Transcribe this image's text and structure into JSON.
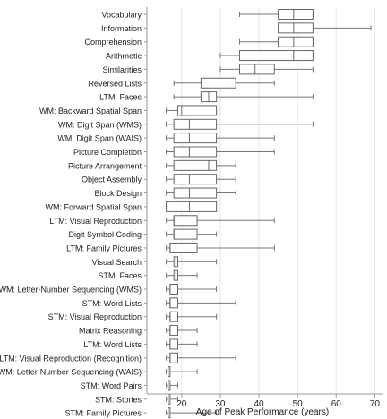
{
  "chart_data": {
    "type": "boxplot",
    "title": "",
    "xlabel": "Age of Peak Performance (years)",
    "ylabel": "",
    "xlim": [
      11,
      72
    ],
    "xticks": [
      20,
      30,
      40,
      50,
      60,
      70
    ],
    "grid": true,
    "legend": "none",
    "colors": {
      "axis": "#999999",
      "box": "#666666",
      "median": "#666666",
      "whisker": "#777777",
      "grid": "#e6e6e6"
    },
    "series": [
      {
        "name": "Vocabulary",
        "whisker_low": 35,
        "q1": 45,
        "median": 49,
        "q3": 54,
        "whisker_high": 54
      },
      {
        "name": "Information",
        "whisker_low": 45,
        "q1": 45,
        "median": 49,
        "q3": 54,
        "whisker_high": 69
      },
      {
        "name": "Comprehension",
        "whisker_low": 35,
        "q1": 45,
        "median": 49,
        "q3": 54,
        "whisker_high": 54
      },
      {
        "name": "Arithmetic",
        "whisker_low": 30,
        "q1": 35,
        "median": 49,
        "q3": 54,
        "whisker_high": 54
      },
      {
        "name": "Similarities",
        "whisker_low": 30,
        "q1": 35,
        "median": 39,
        "q3": 44,
        "whisker_high": 54
      },
      {
        "name": "Reversed Lists",
        "whisker_low": 18,
        "q1": 25,
        "median": 32,
        "q3": 34,
        "whisker_high": 44
      },
      {
        "name": "LTM: Faces",
        "whisker_low": 18,
        "q1": 25,
        "median": 27,
        "q3": 29,
        "whisker_high": 54
      },
      {
        "name": "WM: Backward Spatial Span",
        "whisker_low": 16,
        "q1": 19,
        "median": 20,
        "q3": 29,
        "whisker_high": 29
      },
      {
        "name": "WM: Digit Span (WMS)",
        "whisker_low": 16,
        "q1": 18,
        "median": 22,
        "q3": 29,
        "whisker_high": 54
      },
      {
        "name": "WM: Digit Span (WAIS)",
        "whisker_low": 16,
        "q1": 18,
        "median": 22,
        "q3": 29,
        "whisker_high": 44
      },
      {
        "name": "Picture Completion",
        "whisker_low": 16,
        "q1": 18,
        "median": 22,
        "q3": 29,
        "whisker_high": 44
      },
      {
        "name": "Picture Arrangement",
        "whisker_low": 16,
        "q1": 18,
        "median": 27,
        "q3": 29,
        "whisker_high": 34
      },
      {
        "name": "Object Assembly",
        "whisker_low": 16,
        "q1": 18,
        "median": 22,
        "q3": 29,
        "whisker_high": 34
      },
      {
        "name": "Block Design",
        "whisker_low": 16,
        "q1": 18,
        "median": 22,
        "q3": 29,
        "whisker_high": 34
      },
      {
        "name": "WM: Forward Spatial Span",
        "whisker_low": 16,
        "q1": 16,
        "median": 22,
        "q3": 29,
        "whisker_high": 29
      },
      {
        "name": "LTM: Visual Reproduction",
        "whisker_low": 16,
        "q1": 18,
        "median": 18,
        "q3": 24,
        "whisker_high": 44
      },
      {
        "name": "Digit Symbol Coding",
        "whisker_low": 16,
        "q1": 18,
        "median": 18,
        "q3": 24,
        "whisker_high": 29
      },
      {
        "name": "LTM: Family Pictures",
        "whisker_low": 16,
        "q1": 17,
        "median": 17,
        "q3": 24,
        "whisker_high": 44
      },
      {
        "name": "Visual Search",
        "whisker_low": 16,
        "q1": 18,
        "median": 18.5,
        "q3": 19,
        "whisker_high": 29
      },
      {
        "name": "STM: Faces",
        "whisker_low": 16,
        "q1": 18,
        "median": 18.5,
        "q3": 19,
        "whisker_high": 24
      },
      {
        "name": "WM: Letter-Number Sequencing (WMS)",
        "whisker_low": 16,
        "q1": 17,
        "median": 17,
        "q3": 19,
        "whisker_high": 29
      },
      {
        "name": "STM: Word Lists",
        "whisker_low": 16,
        "q1": 17,
        "median": 17,
        "q3": 19,
        "whisker_high": 34
      },
      {
        "name": "STM: Visual Reproduction",
        "whisker_low": 16,
        "q1": 17,
        "median": 17,
        "q3": 19,
        "whisker_high": 29
      },
      {
        "name": "Matrix Reasoning",
        "whisker_low": 16,
        "q1": 17,
        "median": 17,
        "q3": 19,
        "whisker_high": 24
      },
      {
        "name": "LTM: Word Lists",
        "whisker_low": 16,
        "q1": 17,
        "median": 17,
        "q3": 19,
        "whisker_high": 24
      },
      {
        "name": "LTM: Visual Reproduction (Recognition)",
        "whisker_low": 16,
        "q1": 17,
        "median": 17,
        "q3": 19,
        "whisker_high": 34
      },
      {
        "name": "WM: Letter-Number Sequencing (WAIS)",
        "whisker_low": 16,
        "q1": 16.5,
        "median": 16.5,
        "q3": 17,
        "whisker_high": 24
      },
      {
        "name": "STM: Word Pairs",
        "whisker_low": 16,
        "q1": 16.5,
        "median": 16.5,
        "q3": 17,
        "whisker_high": 19
      },
      {
        "name": "STM: Stories",
        "whisker_low": 16,
        "q1": 16.5,
        "median": 16.5,
        "q3": 17,
        "whisker_high": 19
      },
      {
        "name": "STM: Family Pictures",
        "whisker_low": 16,
        "q1": 16.5,
        "median": 16.5,
        "q3": 17,
        "whisker_high": 29
      }
    ]
  }
}
